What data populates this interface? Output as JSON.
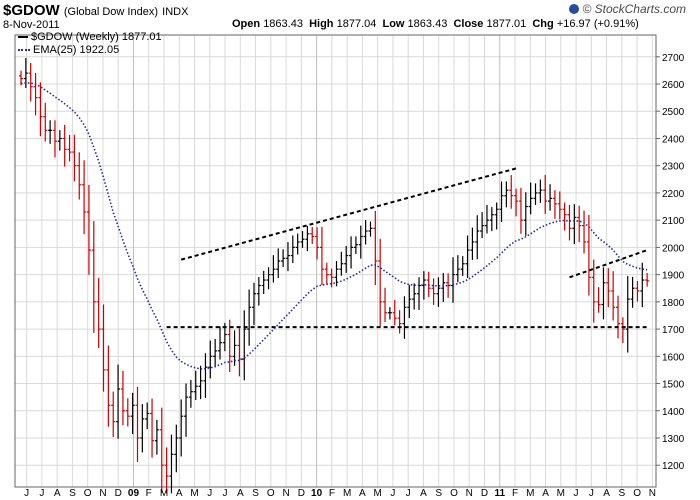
{
  "header": {
    "symbol": "$GDOW",
    "description": "(Global Dow Index)",
    "exchange": "INDX",
    "date": "8-Nov-2011",
    "quote": {
      "open_label": "Open",
      "open": "1863.43",
      "high_label": "High",
      "high": "1877.04",
      "low_label": "Low",
      "low": "1863.43",
      "close_label": "Close",
      "close": "1877.01",
      "chg_label": "Chg",
      "chg": "+16.97 (+0.91%)"
    },
    "brand": "© StockCharts.com"
  },
  "legend": {
    "price": "$GDOW (Weekly) 1877.01",
    "ema": "EMA(25) 1922.05"
  },
  "colors": {
    "up": "#000000",
    "down": "#cc0000",
    "ema": "#2b2b99",
    "grid": "#d9d9d9",
    "trendline": "#000000"
  },
  "chart_data": {
    "type": "ohlc",
    "interval": "weekly",
    "ylim": [
      1120,
      2780
    ],
    "y_ticks": [
      1200,
      1300,
      1400,
      1500,
      1600,
      1700,
      1800,
      1900,
      2000,
      2100,
      2200,
      2300,
      2400,
      2500,
      2600,
      2700
    ],
    "x_tick_labels": [
      "J",
      "J",
      "A",
      "S",
      "O",
      "N",
      "D",
      "09",
      "F",
      "M",
      "A",
      "M",
      "J",
      "J",
      "A",
      "S",
      "O",
      "N",
      "D",
      "10",
      "F",
      "M",
      "A",
      "M",
      "J",
      "J",
      "A",
      "S",
      "O",
      "N",
      "D",
      "11",
      "F",
      "M",
      "A",
      "M",
      "J",
      "J",
      "A",
      "S",
      "O",
      "N"
    ],
    "major_labels": [
      "09",
      "10",
      "11"
    ],
    "series": [
      {
        "name": "$GDOW (Weekly)",
        "kind": "ohlc",
        "weekly_close": [
          2620,
          2640,
          2590,
          2550,
          2480,
          2430,
          2430,
          2390,
          2400,
          2360,
          2350,
          2300,
          2230,
          2130,
          1990,
          1800,
          1700,
          1550,
          1420,
          1360,
          1480,
          1400,
          1380,
          1420,
          1300,
          1370,
          1390,
          1290,
          1330,
          1200,
          1160,
          1240,
          1300,
          1380,
          1450,
          1470,
          1490,
          1510,
          1560,
          1600,
          1620,
          1650,
          1680,
          1600,
          1640,
          1590,
          1700,
          1780,
          1830,
          1860,
          1880,
          1900,
          1920,
          1950,
          1960,
          1970,
          2000,
          2020,
          2030,
          2050,
          2040,
          2000,
          1920,
          1900,
          1890,
          1920,
          1940,
          1970,
          2000,
          2010,
          2040,
          2060,
          2070,
          1950,
          1800,
          1760,
          1760,
          1740,
          1720,
          1780,
          1810,
          1830,
          1860,
          1880,
          1850,
          1830,
          1850,
          1870,
          1860,
          1900,
          1920,
          1940,
          1990,
          2020,
          2060,
          2080,
          2100,
          2120,
          2140,
          2190,
          2210,
          2190,
          2170,
          2100,
          2150,
          2180,
          2200,
          2210,
          2170,
          2180,
          2160,
          2140,
          2120,
          2070,
          2110,
          2080,
          2020,
          1890,
          1800,
          1790,
          1870,
          1840,
          1780,
          1720,
          1700,
          1810,
          1850,
          1840,
          1880,
          1877
        ]
      },
      {
        "name": "EMA(25)",
        "kind": "line",
        "style": "dotted",
        "last": 1922.05
      }
    ],
    "annotations": [
      {
        "kind": "dashed-trendline",
        "from": [
          33,
          1955
        ],
        "to": [
          102,
          2290
        ]
      },
      {
        "kind": "dashed-trendline",
        "from": [
          30,
          1707
        ],
        "to": [
          129,
          1707
        ]
      },
      {
        "kind": "dashed-trendline",
        "from": [
          113,
          1890
        ],
        "to": [
          129,
          1990
        ]
      }
    ]
  }
}
